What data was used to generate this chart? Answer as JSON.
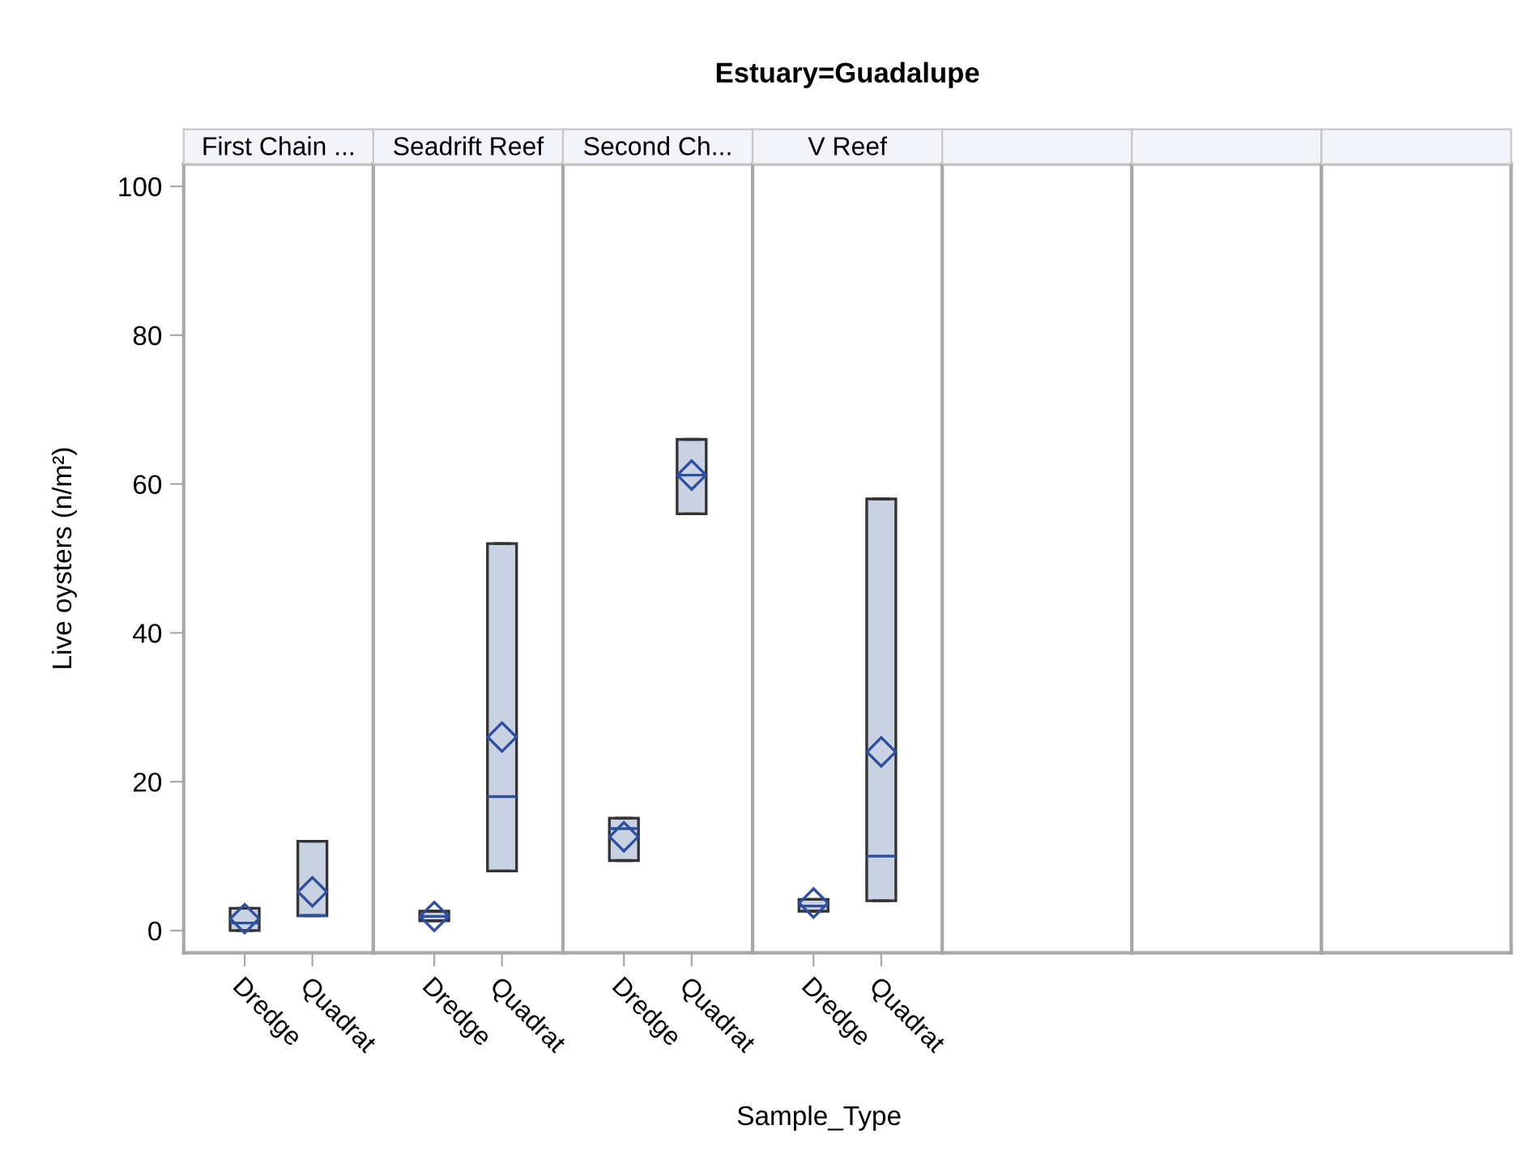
{
  "chart_data": [
    {
      "type": "box",
      "subtitle": "First Chain ...",
      "ylabel": "Live oysters (n/m²)",
      "categories": [
        "Dredge",
        "Quadrat"
      ],
      "color": "#c8d2e3",
      "marker": "diamond",
      "ylim": [
        -3,
        103
      ],
      "yticks": [
        0,
        20,
        40,
        60,
        80,
        100
      ],
      "boxes": [
        {
          "low": 0,
          "q1": 0,
          "median": 1,
          "q3": 3,
          "high": 3,
          "mean": 1.6
        },
        {
          "low": 2,
          "q1": 2,
          "median": 2,
          "q3": 12,
          "high": 12,
          "mean": 5.2
        }
      ]
    },
    {
      "type": "box",
      "subtitle": "Seadrift Reef",
      "categories": [
        "Dredge",
        "Quadrat"
      ],
      "color": "#c8d2e3",
      "marker": "diamond",
      "ylim": [
        -3,
        103
      ],
      "tick_labels": "x",
      "boxes": [
        {
          "low": 1.3,
          "q1": 1.3,
          "median": 1.9,
          "q3": 2.6,
          "high": 2.6,
          "mean": 1.9
        },
        {
          "low": 8,
          "q1": 8,
          "median": 18,
          "q3": 52,
          "high": 52,
          "mean": 26
        }
      ]
    },
    {
      "type": "box",
      "subtitle": "Second Ch...",
      "categories": [
        "Dredge",
        "Quadrat"
      ],
      "color": "#c8d2e3",
      "marker": "diamond",
      "ylim": [
        -3,
        103
      ],
      "tick_labels": "x",
      "boxes": [
        {
          "low": 9.4,
          "q1": 9.4,
          "median": 13.7,
          "q3": 15.1,
          "high": 15.1,
          "mean": 12.6
        },
        {
          "low": 56,
          "q1": 56,
          "median": 61.2,
          "q3": 66,
          "high": 66,
          "mean": 61.2
        }
      ]
    },
    {
      "type": "box",
      "title": "Estuary=Guadalupe",
      "xlabel": "Sample_Type",
      "subtitle": "V Reef",
      "categories": [
        "Dredge",
        "Quadrat"
      ],
      "color": "#c8d2e3",
      "marker": "diamond",
      "ylim": [
        -3,
        103
      ],
      "tick_labels": "x",
      "boxes": [
        {
          "low": 2.6,
          "q1": 2.6,
          "median": 3.3,
          "q3": 4.2,
          "high": 4.2,
          "mean": 3.7
        },
        {
          "low": 4,
          "q1": 4,
          "median": 10,
          "q3": 58,
          "high": 58,
          "mean": 24
        }
      ]
    },
    {
      "type": "other"
    },
    {
      "type": "other"
    },
    {
      "type": "other"
    }
  ]
}
